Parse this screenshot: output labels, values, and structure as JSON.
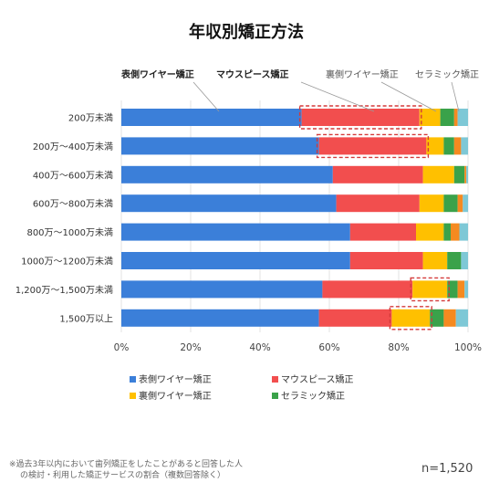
{
  "chart_data": {
    "type": "bar",
    "orientation": "horizontal",
    "stacked": true,
    "title": "年収別矯正方法",
    "categories": [
      "200万未満",
      "200万〜400万未満",
      "400万〜600万未満",
      "600万〜800万未満",
      "800万〜1000万未満",
      "1000万〜1200万未満",
      "1,200万〜1,500万未満",
      "1,500万以上"
    ],
    "series": [
      {
        "name": "表側ワイヤー矯正",
        "color": "#3b7fd9",
        "values": [
          52,
          57,
          61,
          62,
          66,
          66,
          58,
          57
        ]
      },
      {
        "name": "マウスピース矯正",
        "color": "#f24e4e",
        "values": [
          34,
          31,
          26,
          24,
          19,
          21,
          26,
          21
        ]
      },
      {
        "name": "裏側ワイヤー矯正",
        "color": "#ffc000",
        "values": [
          6,
          5,
          9,
          7,
          8,
          7,
          10,
          11
        ]
      },
      {
        "name": "セラミック矯正",
        "color": "#3aa24a",
        "values": [
          4,
          3,
          3,
          4,
          2,
          4,
          3,
          4
        ]
      },
      {
        "name": "",
        "color": "#f58a20",
        "values": [
          1,
          2,
          0.5,
          1.5,
          2.5,
          0,
          2,
          3.5
        ]
      },
      {
        "name": "",
        "color": "#7ec8d6",
        "values": [
          3,
          2,
          0.5,
          1.5,
          2.5,
          2,
          1,
          3.5
        ]
      }
    ],
    "xlim": [
      0,
      100
    ],
    "xticks": [
      "0%",
      "20%",
      "40%",
      "60%",
      "80%",
      "100%"
    ],
    "legend_position": "bottom",
    "callouts": [
      {
        "text": "表側ワイヤー矯正",
        "emphasis": "bold"
      },
      {
        "text": "マウスピース矯正",
        "emphasis": "bold"
      },
      {
        "text": "裏側ワイヤー矯正",
        "emphasis": "light"
      },
      {
        "text": "セラミック矯正",
        "emphasis": "light"
      }
    ],
    "highlight_boxes": [
      {
        "category": "200万未満",
        "x_from": 52,
        "x_to": 86
      },
      {
        "category": "200万〜400万未満",
        "x_from": 57,
        "x_to": 88
      },
      {
        "category": "1,200万〜1,500万未満",
        "x_from": 84,
        "x_to": 94
      },
      {
        "category": "1,500万以上",
        "x_from": 78,
        "x_to": 89
      }
    ]
  },
  "footnote": {
    "line1": "※過去3年以内において歯列矯正をしたことがあると回答した人",
    "line2": "の検討・利用した矯正サービスの割合（複数回答除く）"
  },
  "n_label": "n=1,520"
}
